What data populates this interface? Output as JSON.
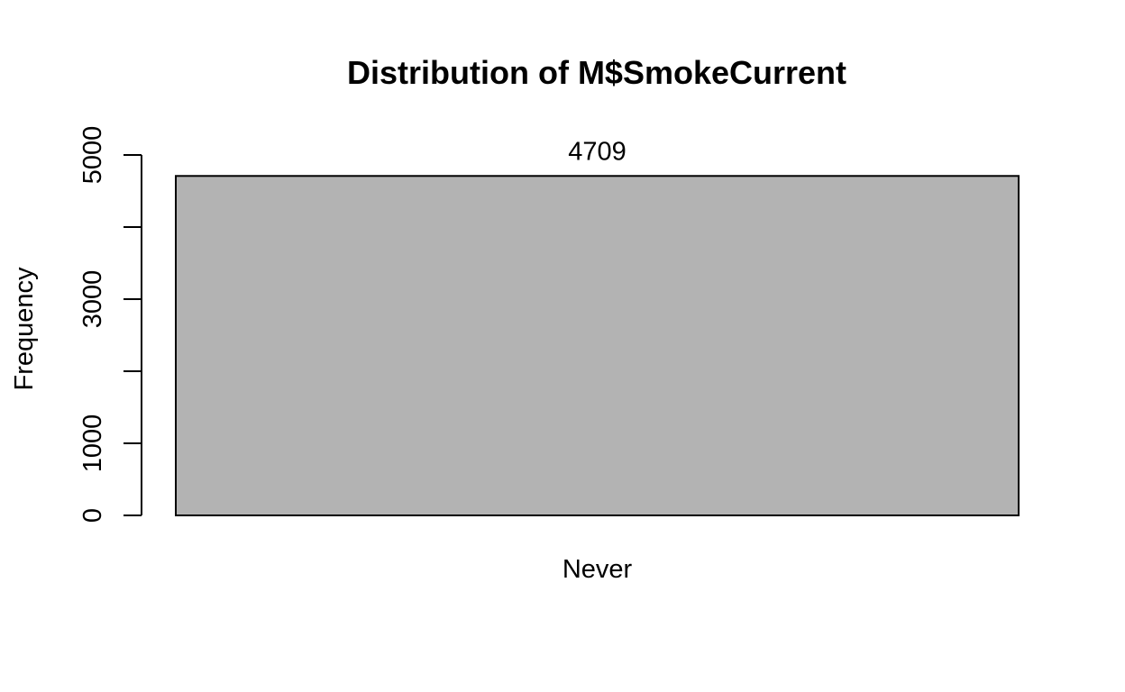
{
  "chart_data": {
    "type": "bar",
    "title": "Distribution of M$SmokeCurrent",
    "xlabel": "",
    "ylabel": "Frequency",
    "categories": [
      "Never"
    ],
    "values": [
      4709
    ],
    "data_labels": [
      "4709"
    ],
    "ylim": [
      0,
      5000
    ],
    "yticks": [
      0,
      1000,
      2000,
      3000,
      4000,
      5000
    ],
    "ytick_labels": [
      "0",
      "1000",
      "",
      "3000",
      "",
      "5000"
    ],
    "grid": false,
    "legend": "none",
    "colors": {
      "bar_fill": "#b3b3b3",
      "bar_stroke": "#000000",
      "axis": "#000000",
      "background": "#ffffff"
    }
  }
}
